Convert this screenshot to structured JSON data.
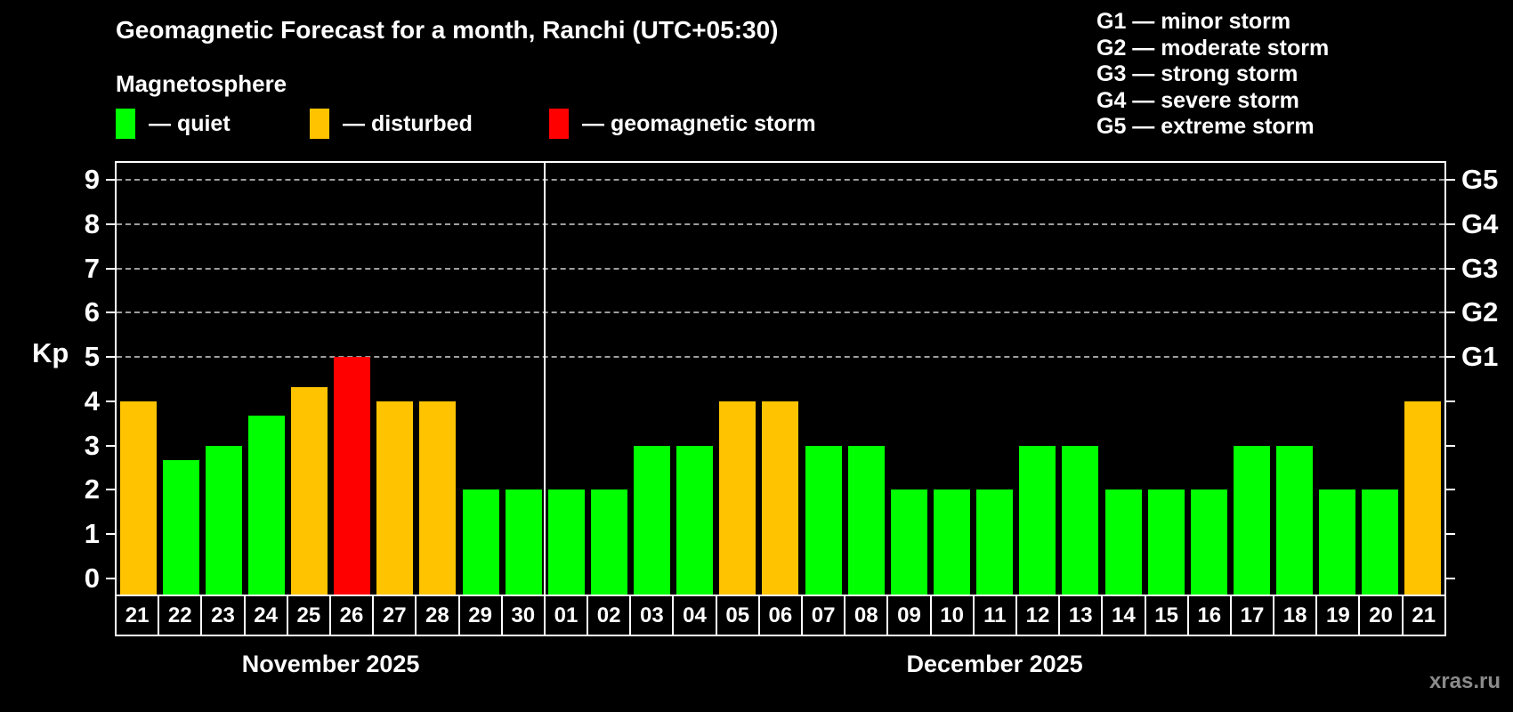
{
  "title": "Geomagnetic Forecast for a month, Ranchi (UTC+05:30)",
  "subtitle": "Magnetosphere",
  "watermark": "xras.ru",
  "colors": {
    "quiet": "#00ff00",
    "disturbed": "#ffc300",
    "storm": "#ff0000",
    "background": "#000000",
    "axis": "#ffffff",
    "gridline": "#9e9e9e",
    "watermark_text": "#8a8a8a"
  },
  "legend": {
    "items": [
      {
        "status": "quiet",
        "label": "— quiet"
      },
      {
        "status": "disturbed",
        "label": "— disturbed"
      },
      {
        "status": "storm",
        "label": "— geomagnetic storm"
      }
    ]
  },
  "gscale_legend": [
    "G1 — minor storm",
    "G2 — moderate storm",
    "G3 — strong storm",
    "G4 — severe storm",
    "G5 — extreme storm"
  ],
  "chart_data": {
    "type": "bar",
    "ylabel": "Kp",
    "ylim": [
      0,
      9
    ],
    "yticks": [
      0,
      1,
      2,
      3,
      4,
      5,
      6,
      7,
      8,
      9
    ],
    "gridlines_at_kp": [
      5,
      6,
      7,
      8,
      9
    ],
    "right_axis": [
      {
        "kp": 5,
        "label": "G1"
      },
      {
        "kp": 6,
        "label": "G2"
      },
      {
        "kp": 7,
        "label": "G3"
      },
      {
        "kp": 8,
        "label": "G4"
      },
      {
        "kp": 9,
        "label": "G5"
      }
    ],
    "grid": "dashed horizontal lines at Kp 5-9",
    "legend_position": "top-left and top-right",
    "months": [
      {
        "name": "November 2025",
        "days": [
          {
            "date": "21",
            "kp": 4,
            "status": "disturbed"
          },
          {
            "date": "22",
            "kp": 2.67,
            "status": "quiet"
          },
          {
            "date": "23",
            "kp": 3,
            "status": "quiet"
          },
          {
            "date": "24",
            "kp": 3.67,
            "status": "quiet"
          },
          {
            "date": "25",
            "kp": 4.33,
            "status": "disturbed"
          },
          {
            "date": "26",
            "kp": 5,
            "status": "storm"
          },
          {
            "date": "27",
            "kp": 4,
            "status": "disturbed"
          },
          {
            "date": "28",
            "kp": 4,
            "status": "disturbed"
          },
          {
            "date": "29",
            "kp": 2,
            "status": "quiet"
          },
          {
            "date": "30",
            "kp": 2,
            "status": "quiet"
          }
        ]
      },
      {
        "name": "December 2025",
        "days": [
          {
            "date": "01",
            "kp": 2,
            "status": "quiet"
          },
          {
            "date": "02",
            "kp": 2,
            "status": "quiet"
          },
          {
            "date": "03",
            "kp": 3,
            "status": "quiet"
          },
          {
            "date": "04",
            "kp": 3,
            "status": "quiet"
          },
          {
            "date": "05",
            "kp": 4,
            "status": "disturbed"
          },
          {
            "date": "06",
            "kp": 4,
            "status": "disturbed"
          },
          {
            "date": "07",
            "kp": 3,
            "status": "quiet"
          },
          {
            "date": "08",
            "kp": 3,
            "status": "quiet"
          },
          {
            "date": "09",
            "kp": 2,
            "status": "quiet"
          },
          {
            "date": "10",
            "kp": 2,
            "status": "quiet"
          },
          {
            "date": "11",
            "kp": 2,
            "status": "quiet"
          },
          {
            "date": "12",
            "kp": 3,
            "status": "quiet"
          },
          {
            "date": "13",
            "kp": 3,
            "status": "quiet"
          },
          {
            "date": "14",
            "kp": 2,
            "status": "quiet"
          },
          {
            "date": "15",
            "kp": 2,
            "status": "quiet"
          },
          {
            "date": "16",
            "kp": 2,
            "status": "quiet"
          },
          {
            "date": "17",
            "kp": 3,
            "status": "quiet"
          },
          {
            "date": "18",
            "kp": 3,
            "status": "quiet"
          },
          {
            "date": "19",
            "kp": 2,
            "status": "quiet"
          },
          {
            "date": "20",
            "kp": 2,
            "status": "quiet"
          },
          {
            "date": "21",
            "kp": 4,
            "status": "disturbed"
          }
        ]
      }
    ]
  }
}
